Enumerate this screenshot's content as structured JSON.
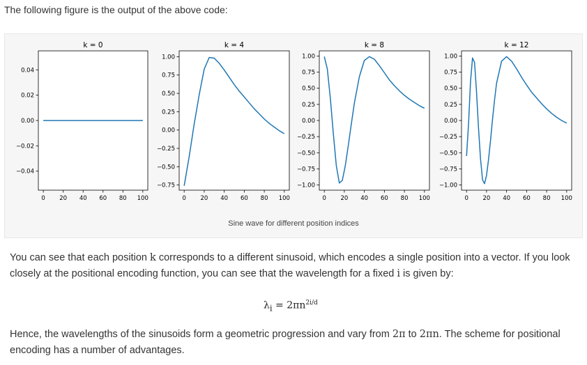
{
  "intro_text": "The following figure is the output of the above code:",
  "caption": "Sine wave for different position indices",
  "paragraph1": {
    "a": "You can see that each position ",
    "k": "k",
    "b": " corresponds to a different sinusoid, which encodes a single position into a vector. If you look closely at the positional encoding function, you can see that the wavelength for a fixed ",
    "i": "i",
    "c": " is given by:"
  },
  "formula": {
    "lhs": "λ",
    "sub": "i",
    "eq": " = 2πn",
    "sup": "2i/d"
  },
  "paragraph2": {
    "a": "Hence, the wavelengths of the sinusoids form a geometric progression and vary from ",
    "from": "2π",
    "b": " to ",
    "to": "2πn",
    "c": ". The scheme for positional encoding has a number of advantages."
  },
  "colors": {
    "line": "#1f77b4",
    "axis": "#000000",
    "background": "#f6f6f6"
  },
  "chart_data": [
    {
      "type": "line",
      "title": "k = 0",
      "xlim": [
        -5,
        105
      ],
      "ylim": [
        -0.055,
        0.055
      ],
      "xticks": [
        0,
        20,
        40,
        60,
        80,
        100
      ],
      "yticks": [
        -0.04,
        -0.02,
        0.0,
        0.02,
        0.04
      ],
      "ytick_labels": [
        "−0.04",
        "−0.02",
        "0.00",
        "0.02",
        "0.04"
      ],
      "series": [
        {
          "x": [
            0,
            100
          ],
          "y": [
            0,
            0
          ]
        }
      ]
    },
    {
      "type": "line",
      "title": "k = 4",
      "xlim": [
        -5,
        105
      ],
      "ylim": [
        -0.82,
        1.08
      ],
      "xticks": [
        0,
        20,
        40,
        60,
        80,
        100
      ],
      "yticks": [
        -0.75,
        -0.5,
        -0.25,
        0.0,
        0.25,
        0.5,
        0.75,
        1.0
      ],
      "ytick_labels": [
        "−0.75",
        "−0.50",
        "−0.25",
        "0.00",
        "0.25",
        "0.50",
        "0.75",
        "1.00"
      ],
      "series": [
        {
          "x": [
            0,
            5,
            10,
            15,
            20,
            25,
            30,
            35,
            40,
            45,
            50,
            55,
            60,
            65,
            70,
            75,
            80,
            85,
            90,
            95,
            100
          ],
          "y": [
            -0.76,
            -0.36,
            0.08,
            0.48,
            0.83,
            0.99,
            0.98,
            0.91,
            0.82,
            0.72,
            0.62,
            0.53,
            0.45,
            0.37,
            0.29,
            0.22,
            0.15,
            0.09,
            0.04,
            -0.01,
            -0.05
          ]
        }
      ]
    },
    {
      "type": "line",
      "title": "k = 8",
      "xlim": [
        -5,
        105
      ],
      "ylim": [
        -1.08,
        1.08
      ],
      "xticks": [
        0,
        20,
        40,
        60,
        80,
        100
      ],
      "yticks": [
        -1.0,
        -0.75,
        -0.5,
        -0.25,
        0.0,
        0.25,
        0.5,
        0.75,
        1.0
      ],
      "ytick_labels": [
        "−1.00",
        "−0.75",
        "−0.50",
        "−0.25",
        "0.00",
        "0.25",
        "0.50",
        "0.75",
        "1.00"
      ],
      "series": [
        {
          "x": [
            0,
            3,
            6,
            9,
            12,
            15,
            18,
            21,
            24,
            27,
            30,
            35,
            40,
            45,
            50,
            55,
            60,
            65,
            70,
            75,
            80,
            85,
            90,
            95,
            100
          ],
          "y": [
            0.99,
            0.8,
            0.35,
            -0.2,
            -0.7,
            -0.97,
            -0.93,
            -0.7,
            -0.38,
            -0.05,
            0.27,
            0.68,
            0.93,
            0.99,
            0.95,
            0.85,
            0.74,
            0.63,
            0.54,
            0.46,
            0.39,
            0.33,
            0.28,
            0.23,
            0.19
          ]
        }
      ]
    },
    {
      "type": "line",
      "title": "k = 12",
      "xlim": [
        -5,
        105
      ],
      "ylim": [
        -1.08,
        1.08
      ],
      "xticks": [
        0,
        20,
        40,
        60,
        80,
        100
      ],
      "yticks": [
        -1.0,
        -0.75,
        -0.5,
        -0.25,
        0.0,
        0.25,
        0.5,
        0.75,
        1.0
      ],
      "ytick_labels": [
        "−1.00",
        "−0.75",
        "−0.50",
        "−0.25",
        "0.00",
        "0.25",
        "0.50",
        "0.75",
        "1.00"
      ],
      "series": [
        {
          "x": [
            0,
            2,
            4,
            6,
            8,
            10,
            12,
            14,
            16,
            18,
            20,
            22,
            24,
            26,
            28,
            30,
            35,
            40,
            45,
            50,
            55,
            60,
            65,
            70,
            75,
            80,
            85,
            90,
            95,
            100
          ],
          "y": [
            -0.55,
            -0.05,
            0.6,
            0.97,
            0.9,
            0.45,
            -0.12,
            -0.6,
            -0.92,
            -0.98,
            -0.85,
            -0.6,
            -0.3,
            0.02,
            0.32,
            0.58,
            0.92,
            0.99,
            0.92,
            0.8,
            0.67,
            0.55,
            0.44,
            0.35,
            0.26,
            0.18,
            0.11,
            0.05,
            0.0,
            -0.04
          ]
        }
      ]
    }
  ]
}
